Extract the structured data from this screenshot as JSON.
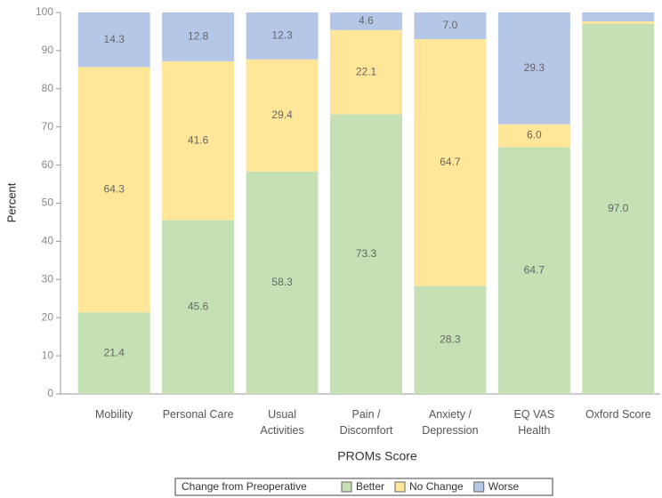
{
  "chart_data": {
    "type": "stacked_bar",
    "x_label": "PROMs Score",
    "y_label": "Percent",
    "categories": [
      "Mobility",
      "Personal Care",
      "Usual\nActivities",
      "Pain /\nDiscomfort",
      "Anxiety /\nDepression",
      "EQ VAS\nHealth",
      "Oxford Score"
    ],
    "series": [
      {
        "name": "Better",
        "color": "#c5e0b4",
        "values": [
          21.4,
          45.6,
          58.3,
          73.3,
          28.3,
          64.7,
          97.0
        ],
        "value_labels": [
          "21.4",
          "45.6",
          "58.3",
          "73.3",
          "28.3",
          "64.7",
          "97.0"
        ]
      },
      {
        "name": "No Change",
        "color": "#ffe699",
        "values": [
          64.3,
          41.6,
          29.4,
          22.1,
          64.7,
          6.0,
          0.7
        ],
        "value_labels": [
          "64.3",
          "41.6",
          "29.4",
          "22.1",
          "64.7",
          "6.0",
          null
        ]
      },
      {
        "name": "Worse",
        "color": "#b4c7e7",
        "values": [
          14.3,
          12.8,
          12.3,
          4.6,
          7.0,
          29.3,
          2.3
        ],
        "value_labels": [
          "14.3",
          "12.8",
          "12.3",
          "4.6",
          "7.0",
          "29.3",
          null
        ]
      }
    ],
    "legend_title": "Change from Preoperative",
    "ylim": [
      0,
      100
    ],
    "yticks": [
      0,
      10,
      20,
      30,
      40,
      50,
      60,
      70,
      80,
      90,
      100
    ]
  }
}
